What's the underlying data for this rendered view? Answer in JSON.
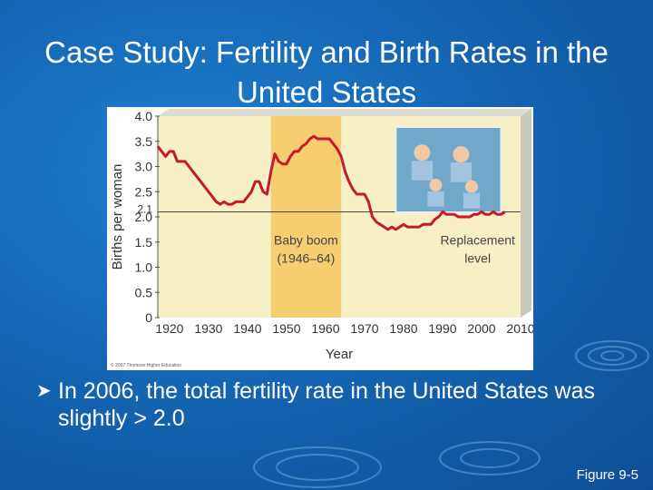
{
  "slide": {
    "title": "Case Study: Fertility and Birth Rates in the United States",
    "bullet": "In 2006, the total fertility rate in the United States was slightly > 2.0",
    "figure": "Figure 9-5"
  },
  "colors": {
    "background": "#1566b4",
    "plot_area": "#f7f0c4",
    "baby_boom_band": "#f7cd72",
    "series_line": "#c41a2e",
    "frame": "#dcdcd2"
  },
  "chart_data": {
    "type": "line",
    "title": "",
    "xlabel": "Year",
    "ylabel": "Births per woman",
    "xlim": [
      1917,
      2010
    ],
    "ylim": [
      0,
      4.0
    ],
    "x_ticks": [
      "1920",
      "1930",
      "1940",
      "1950",
      "1960",
      "1970",
      "1980",
      "1990",
      "2000",
      "2010"
    ],
    "y_ticks": [
      "0",
      "0.5",
      "1.0",
      "1.5",
      "2.0",
      "2.5",
      "3.0",
      "3.5",
      "4.0"
    ],
    "extra_y_tick": "2.1",
    "reference_line": {
      "y": 2.1,
      "label": [
        "Replacement",
        "level"
      ]
    },
    "shaded_band": {
      "x_start": 1946,
      "x_end": 1964,
      "label": [
        "Baby boom",
        "(1946–64)"
      ]
    },
    "copyright": "© 2007 Thomson Higher Education",
    "series": [
      {
        "x": [
          1917,
          1918,
          1919,
          1920,
          1921,
          1922,
          1923,
          1924,
          1925,
          1926,
          1927,
          1928,
          1929,
          1930,
          1931,
          1932,
          1933,
          1934,
          1935,
          1936,
          1937,
          1938,
          1939,
          1940,
          1941,
          1942,
          1943,
          1944,
          1945,
          1946,
          1947,
          1948,
          1949,
          1950,
          1951,
          1952,
          1953,
          1954,
          1955,
          1956,
          1957,
          1958,
          1959,
          1960,
          1961,
          1962,
          1963,
          1964,
          1965,
          1966,
          1967,
          1968,
          1969,
          1970,
          1971,
          1972,
          1973,
          1974,
          1975,
          1976,
          1977,
          1978,
          1979,
          1980,
          1981,
          1982,
          1983,
          1984,
          1985,
          1986,
          1987,
          1988,
          1989,
          1990,
          1991,
          1992,
          1993,
          1994,
          1995,
          1996,
          1997,
          1998,
          1999,
          2000,
          2001,
          2002,
          2003,
          2004,
          2005,
          2006
        ],
        "y": [
          3.4,
          3.3,
          3.2,
          3.3,
          3.3,
          3.1,
          3.1,
          3.1,
          3.0,
          2.9,
          2.8,
          2.7,
          2.6,
          2.5,
          2.4,
          2.3,
          2.25,
          2.3,
          2.25,
          2.25,
          2.3,
          2.3,
          2.3,
          2.4,
          2.5,
          2.7,
          2.7,
          2.5,
          2.45,
          2.9,
          3.25,
          3.1,
          3.05,
          3.05,
          3.2,
          3.3,
          3.3,
          3.4,
          3.45,
          3.55,
          3.6,
          3.55,
          3.55,
          3.55,
          3.55,
          3.45,
          3.35,
          3.2,
          2.9,
          2.7,
          2.55,
          2.45,
          2.45,
          2.45,
          2.3,
          2.0,
          1.9,
          1.85,
          1.8,
          1.75,
          1.8,
          1.75,
          1.8,
          1.85,
          1.8,
          1.8,
          1.8,
          1.8,
          1.85,
          1.85,
          1.85,
          1.95,
          2.0,
          2.1,
          2.05,
          2.05,
          2.05,
          2.0,
          2.0,
          2.0,
          2.0,
          2.05,
          2.05,
          2.1,
          2.05,
          2.05,
          2.1,
          2.05,
          2.05,
          2.1
        ]
      }
    ]
  }
}
